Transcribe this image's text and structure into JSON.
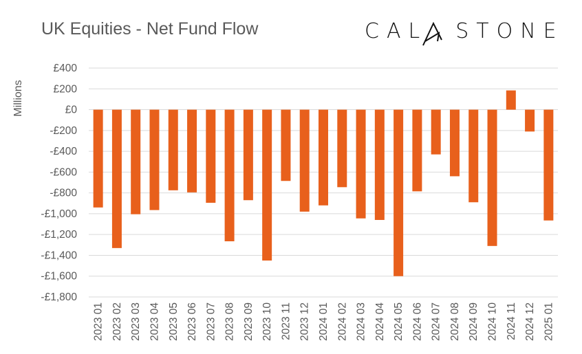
{
  "chart_data": {
    "type": "bar",
    "title": "UK Equities - Net Fund Flow",
    "ylabel": "Millions",
    "xlabel": "",
    "ylim": [
      -1800,
      400
    ],
    "yticks": [
      400,
      200,
      0,
      -200,
      -400,
      -600,
      -800,
      -1000,
      -1200,
      -1400,
      -1600,
      -1800
    ],
    "ytick_labels": [
      "£400",
      "£200",
      "£0",
      "-£200",
      "-£400",
      "-£600",
      "-£800",
      "-£1,000",
      "-£1,200",
      "-£1,400",
      "-£1,600",
      "-£1,800"
    ],
    "grid": true,
    "categories": [
      "2023 01",
      "2023 02",
      "2023 03",
      "2023 04",
      "2023 05",
      "2023 06",
      "2023 07",
      "2023 08",
      "2023 09",
      "2023 10",
      "2023 11",
      "2023 12",
      "2024 01",
      "2024 02",
      "2024 03",
      "2024 04",
      "2024 05",
      "2024 06",
      "2024 07",
      "2024 08",
      "2024 09",
      "2024 10",
      "2024 11",
      "2024 12",
      "2025 01"
    ],
    "values": [
      -940,
      -1330,
      -1005,
      -965,
      -775,
      -795,
      -895,
      -1265,
      -870,
      -1450,
      -685,
      -980,
      -920,
      -745,
      -1045,
      -1060,
      -1600,
      -785,
      -430,
      -640,
      -890,
      -1310,
      185,
      -210,
      -1065
    ],
    "bar_color": "#E8601C"
  },
  "logo": {
    "text": "CALASTONE"
  }
}
